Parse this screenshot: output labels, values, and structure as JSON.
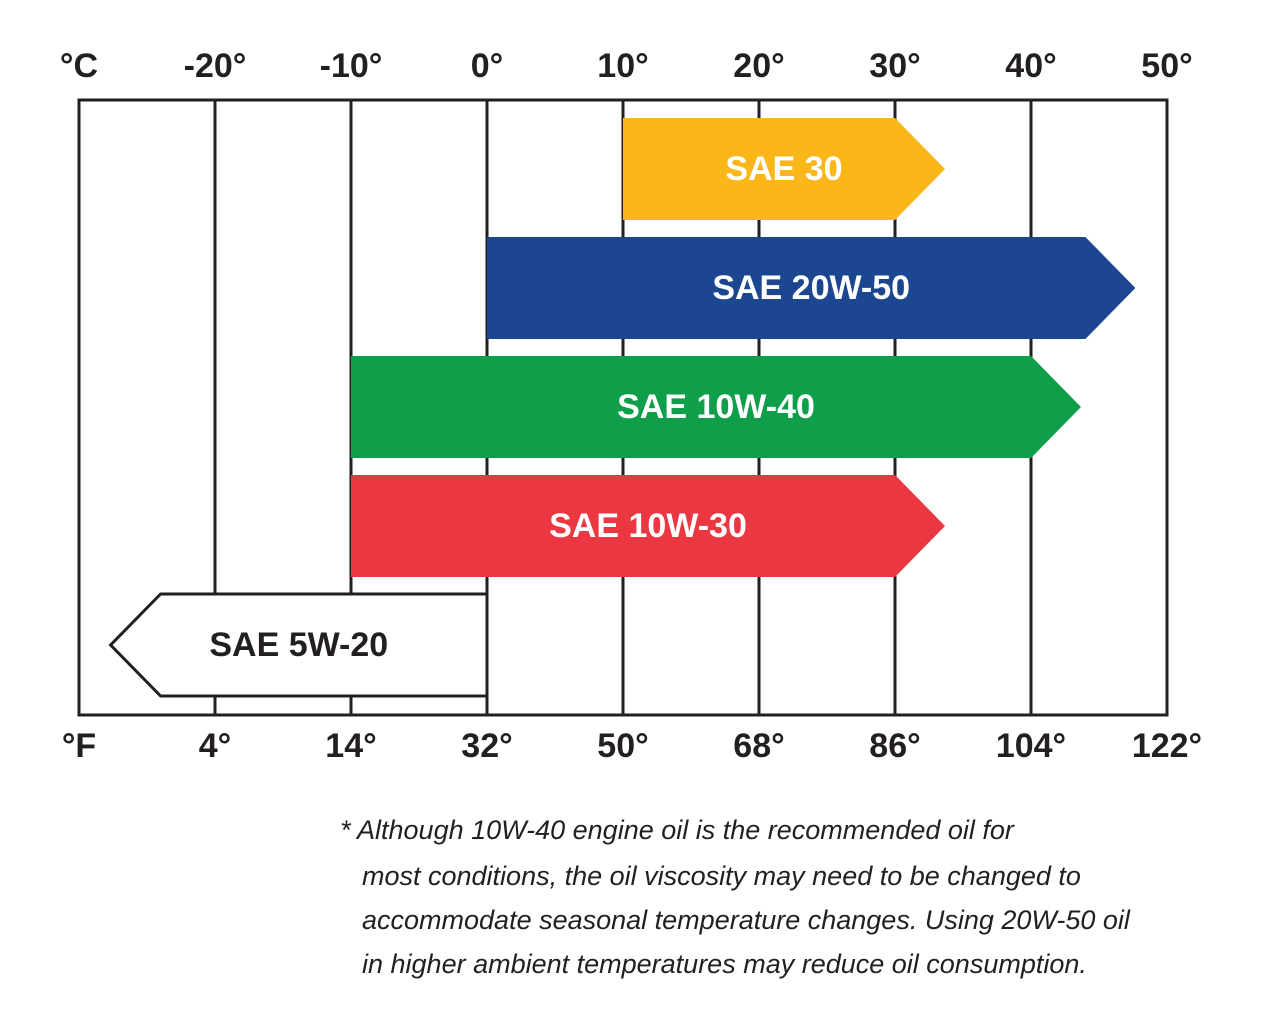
{
  "chart_data": {
    "type": "range-arrow",
    "xlim": [
      -30,
      50
    ],
    "xticks": [
      {
        "value": -30,
        "label": "°C"
      },
      {
        "value": -20,
        "label": "-20°"
      },
      {
        "value": -10,
        "label": "-10°"
      },
      {
        "value": 0,
        "label": "0°"
      },
      {
        "value": 10,
        "label": "10°"
      },
      {
        "value": 20,
        "label": "20°"
      },
      {
        "value": 30,
        "label": "30°"
      },
      {
        "value": 40,
        "label": "40°"
      },
      {
        "value": 50,
        "label": "50°"
      }
    ],
    "x2ticks": [
      {
        "value": -30,
        "label": "°F"
      },
      {
        "value": -20,
        "label": "4°"
      },
      {
        "value": -10,
        "label": "14°"
      },
      {
        "value": 0,
        "label": "32°"
      },
      {
        "value": 10,
        "label": "50°"
      },
      {
        "value": 20,
        "label": "68°"
      },
      {
        "value": 30,
        "label": "86°"
      },
      {
        "value": 40,
        "label": "104°"
      },
      {
        "value": 50,
        "label": "122°"
      }
    ],
    "grid": true,
    "series": [
      {
        "name": "SAE 30",
        "color": "#fbb619",
        "text_color": "#ffffff",
        "values": [
          10,
          30
        ],
        "direction": "right"
      },
      {
        "name": "SAE 20W-50",
        "color": "#1c4790",
        "text_color": "#ffffff",
        "values": [
          0,
          44
        ],
        "direction": "right"
      },
      {
        "name": "SAE 10W-40",
        "color": "#0f9e4a",
        "text_color": "#ffffff",
        "values": [
          -10,
          40
        ],
        "direction": "right"
      },
      {
        "name": "SAE 10W-30",
        "color": "#ea3742",
        "text_color": "#ffffff",
        "values": [
          -10,
          30
        ],
        "direction": "right"
      },
      {
        "name": "SAE 5W-20",
        "color": "#ffffff",
        "text_color": "#231f20",
        "values": [
          -24,
          0
        ],
        "direction": "left"
      }
    ],
    "note": [
      "* Although 10W-40 engine oil is the recommended oil for",
      "most conditions, the oil viscosity may need to be changed to",
      "accommodate seasonal temperature changes. Using 20W-50 oil",
      "in higher ambient temperatures may reduce oil consumption."
    ]
  }
}
